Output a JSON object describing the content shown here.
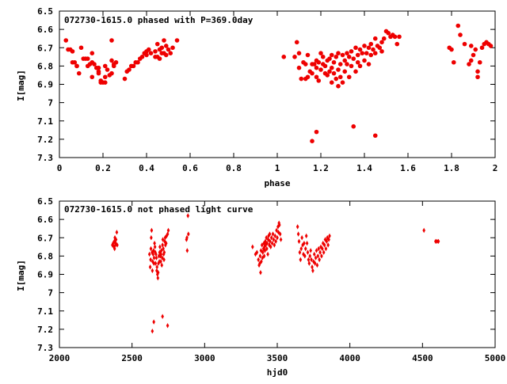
{
  "colors": {
    "points": "#ee0000",
    "frame": "#000000",
    "background": "#ffffff"
  },
  "chart_data": [
    {
      "type": "scatter",
      "title": "072730-1615.0 phased with P=369.0day",
      "xlabel": "phase",
      "ylabel": "I[mag]",
      "xlim": [
        0,
        2
      ],
      "ylim": [
        6.5,
        7.3
      ],
      "y_inverted": true,
      "x_ticks": [
        "0",
        "0.2",
        "0.4",
        "0.6",
        "0.8",
        "1",
        "1.2",
        "1.4",
        "1.6",
        "1.8",
        "2"
      ],
      "y_ticks": [
        "6.5",
        "6.6",
        "6.7",
        "6.8",
        "6.9",
        "7",
        "7.1",
        "7.2",
        "7.3"
      ],
      "marker": "filled-circle",
      "grid": false,
      "legend": "none",
      "points": [
        [
          0.03,
          6.66
        ],
        [
          0.04,
          6.71
        ],
        [
          0.05,
          6.71
        ],
        [
          0.06,
          6.72
        ],
        [
          0.06,
          6.78
        ],
        [
          0.07,
          6.78
        ],
        [
          0.08,
          6.8
        ],
        [
          0.08,
          6.8
        ],
        [
          0.09,
          6.84
        ],
        [
          0.1,
          6.7
        ],
        [
          0.11,
          6.76
        ],
        [
          0.12,
          6.76
        ],
        [
          0.13,
          6.76
        ],
        [
          0.13,
          6.8
        ],
        [
          0.14,
          6.79
        ],
        [
          0.15,
          6.73
        ],
        [
          0.15,
          6.78
        ],
        [
          0.15,
          6.86
        ],
        [
          0.16,
          6.79
        ],
        [
          0.17,
          6.81
        ],
        [
          0.18,
          6.81
        ],
        [
          0.18,
          6.83
        ],
        [
          0.18,
          6.84
        ],
        [
          0.19,
          6.88
        ],
        [
          0.19,
          6.89
        ],
        [
          0.2,
          6.89
        ],
        [
          0.21,
          6.86
        ],
        [
          0.21,
          6.89
        ],
        [
          0.21,
          6.8
        ],
        [
          0.22,
          6.82
        ],
        [
          0.23,
          6.85
        ],
        [
          0.24,
          6.84
        ],
        [
          0.24,
          6.77
        ],
        [
          0.25,
          6.79
        ],
        [
          0.25,
          6.8
        ],
        [
          0.26,
          6.78
        ],
        [
          0.24,
          6.66
        ],
        [
          0.3,
          6.87
        ],
        [
          0.31,
          6.83
        ],
        [
          0.32,
          6.82
        ],
        [
          0.33,
          6.8
        ],
        [
          0.34,
          6.8
        ],
        [
          0.35,
          6.78
        ],
        [
          0.36,
          6.78
        ],
        [
          0.37,
          6.76
        ],
        [
          0.38,
          6.75
        ],
        [
          0.39,
          6.73
        ],
        [
          0.4,
          6.74
        ],
        [
          0.4,
          6.72
        ],
        [
          0.41,
          6.71
        ],
        [
          0.42,
          6.73
        ],
        [
          0.44,
          6.75
        ],
        [
          0.44,
          6.72
        ],
        [
          0.45,
          6.75
        ],
        [
          0.45,
          6.68
        ],
        [
          0.46,
          6.76
        ],
        [
          0.46,
          6.71
        ],
        [
          0.47,
          6.73
        ],
        [
          0.47,
          6.7
        ],
        [
          0.48,
          6.66
        ],
        [
          0.48,
          6.73
        ],
        [
          0.49,
          6.69
        ],
        [
          0.49,
          6.74
        ],
        [
          0.5,
          6.71
        ],
        [
          0.51,
          6.73
        ],
        [
          0.52,
          6.7
        ],
        [
          0.54,
          6.66
        ],
        [
          1.03,
          6.75
        ],
        [
          1.08,
          6.75
        ],
        [
          1.09,
          6.67
        ],
        [
          1.1,
          6.81
        ],
        [
          1.1,
          6.73
        ],
        [
          1.11,
          6.87
        ],
        [
          1.12,
          6.78
        ],
        [
          1.13,
          6.79
        ],
        [
          1.13,
          6.87
        ],
        [
          1.14,
          6.74
        ],
        [
          1.14,
          6.86
        ],
        [
          1.15,
          6.83
        ],
        [
          1.16,
          6.79
        ],
        [
          1.16,
          6.84
        ],
        [
          1.17,
          6.79
        ],
        [
          1.18,
          6.77
        ],
        [
          1.18,
          6.81
        ],
        [
          1.18,
          6.86
        ],
        [
          1.19,
          6.78
        ],
        [
          1.19,
          6.88
        ],
        [
          1.2,
          6.73
        ],
        [
          1.2,
          6.82
        ],
        [
          1.21,
          6.79
        ],
        [
          1.21,
          6.75
        ],
        [
          1.22,
          6.8
        ],
        [
          1.22,
          6.84
        ],
        [
          1.23,
          6.77
        ],
        [
          1.23,
          6.85
        ],
        [
          1.24,
          6.76
        ],
        [
          1.24,
          6.83
        ],
        [
          1.25,
          6.74
        ],
        [
          1.25,
          6.81
        ],
        [
          1.25,
          6.89
        ],
        [
          1.26,
          6.78
        ],
        [
          1.26,
          6.84
        ],
        [
          1.27,
          6.75
        ],
        [
          1.27,
          6.87
        ],
        [
          1.28,
          6.73
        ],
        [
          1.28,
          6.82
        ],
        [
          1.28,
          6.91
        ],
        [
          1.29,
          6.79
        ],
        [
          1.29,
          6.86
        ],
        [
          1.3,
          6.74
        ],
        [
          1.3,
          6.89
        ],
        [
          1.31,
          6.77
        ],
        [
          1.31,
          6.83
        ],
        [
          1.32,
          6.73
        ],
        [
          1.32,
          6.79
        ],
        [
          1.33,
          6.75
        ],
        [
          1.33,
          6.86
        ],
        [
          1.34,
          6.72
        ],
        [
          1.34,
          6.8
        ],
        [
          1.35,
          6.76
        ],
        [
          1.36,
          6.7
        ],
        [
          1.36,
          6.83
        ],
        [
          1.37,
          6.74
        ],
        [
          1.37,
          6.78
        ],
        [
          1.38,
          6.71
        ],
        [
          1.38,
          6.8
        ],
        [
          1.39,
          6.73
        ],
        [
          1.4,
          6.69
        ],
        [
          1.4,
          6.77
        ],
        [
          1.41,
          6.73
        ],
        [
          1.42,
          6.7
        ],
        [
          1.42,
          6.79
        ],
        [
          1.43,
          6.74
        ],
        [
          1.43,
          6.68
        ],
        [
          1.44,
          6.71
        ],
        [
          1.45,
          6.65
        ],
        [
          1.45,
          6.73
        ],
        [
          1.46,
          6.69
        ],
        [
          1.47,
          6.7
        ],
        [
          1.48,
          6.67
        ],
        [
          1.48,
          6.72
        ],
        [
          1.49,
          6.65
        ],
        [
          1.5,
          6.61
        ],
        [
          1.51,
          6.62
        ],
        [
          1.52,
          6.64
        ],
        [
          1.53,
          6.63
        ],
        [
          1.54,
          6.64
        ],
        [
          1.55,
          6.68
        ],
        [
          1.56,
          6.64
        ],
        [
          1.16,
          7.21
        ],
        [
          1.18,
          7.16
        ],
        [
          1.35,
          7.13
        ],
        [
          1.45,
          7.18
        ],
        [
          1.79,
          6.7
        ],
        [
          1.8,
          6.71
        ],
        [
          1.81,
          6.78
        ],
        [
          1.83,
          6.58
        ],
        [
          1.84,
          6.63
        ],
        [
          1.86,
          6.68
        ],
        [
          1.88,
          6.79
        ],
        [
          1.89,
          6.77
        ],
        [
          1.89,
          6.69
        ],
        [
          1.9,
          6.74
        ],
        [
          1.91,
          6.71
        ],
        [
          1.92,
          6.83
        ],
        [
          1.92,
          6.86
        ],
        [
          1.93,
          6.78
        ],
        [
          1.94,
          6.7
        ],
        [
          1.95,
          6.68
        ],
        [
          1.96,
          6.67
        ],
        [
          1.97,
          6.68
        ],
        [
          1.98,
          6.69
        ]
      ]
    },
    {
      "type": "scatter",
      "title": "072730-1615.0 not phased light curve",
      "xlabel": "hjd0",
      "ylabel": "I[mag]",
      "xlim": [
        2000,
        5000
      ],
      "ylim": [
        6.5,
        7.3
      ],
      "y_inverted": true,
      "x_ticks": [
        "2000",
        "2500",
        "3000",
        "3500",
        "4000",
        "4500",
        "5000"
      ],
      "y_ticks": [
        "6.5",
        "6.6",
        "6.7",
        "6.8",
        "6.9",
        "7",
        "7.1",
        "7.2",
        "7.3"
      ],
      "marker": "small-diamond",
      "grid": false,
      "legend": "none",
      "points": [
        [
          2365,
          6.74
        ],
        [
          2370,
          6.73
        ],
        [
          2375,
          6.75
        ],
        [
          2378,
          6.72
        ],
        [
          2380,
          6.76
        ],
        [
          2382,
          6.7
        ],
        [
          2385,
          6.74
        ],
        [
          2388,
          6.73
        ],
        [
          2390,
          6.71
        ],
        [
          2395,
          6.67
        ],
        [
          2398,
          6.74
        ],
        [
          2620,
          6.79
        ],
        [
          2625,
          6.86
        ],
        [
          2628,
          6.82
        ],
        [
          2630,
          6.76
        ],
        [
          2632,
          6.7
        ],
        [
          2635,
          6.66
        ],
        [
          2638,
          6.78
        ],
        [
          2640,
          6.88
        ],
        [
          2642,
          6.83
        ],
        [
          2645,
          6.79
        ],
        [
          2648,
          6.77
        ],
        [
          2650,
          6.84
        ],
        [
          2652,
          6.81
        ],
        [
          2655,
          6.73
        ],
        [
          2658,
          6.75
        ],
        [
          2660,
          6.78
        ],
        [
          2662,
          6.84
        ],
        [
          2665,
          6.79
        ],
        [
          2668,
          6.81
        ],
        [
          2670,
          6.88
        ],
        [
          2672,
          6.86
        ],
        [
          2675,
          6.9
        ],
        [
          2678,
          6.92
        ],
        [
          2680,
          6.89
        ],
        [
          2682,
          6.84
        ],
        [
          2685,
          6.8
        ],
        [
          2688,
          6.83
        ],
        [
          2690,
          6.78
        ],
        [
          2692,
          6.75
        ],
        [
          2695,
          6.8
        ],
        [
          2698,
          6.83
        ],
        [
          2700,
          6.79
        ],
        [
          2702,
          6.77
        ],
        [
          2705,
          6.85
        ],
        [
          2708,
          6.81
        ],
        [
          2710,
          6.74
        ],
        [
          2712,
          6.71
        ],
        [
          2715,
          6.76
        ],
        [
          2718,
          6.79
        ],
        [
          2720,
          6.82
        ],
        [
          2722,
          6.78
        ],
        [
          2725,
          6.72
        ],
        [
          2728,
          6.7
        ],
        [
          2730,
          6.74
        ],
        [
          2735,
          6.73
        ],
        [
          2738,
          6.69
        ],
        [
          2745,
          6.68
        ],
        [
          2750,
          6.66
        ],
        [
          2875,
          6.71
        ],
        [
          2878,
          6.7
        ],
        [
          2880,
          6.77
        ],
        [
          2885,
          6.58
        ],
        [
          2888,
          6.68
        ],
        [
          2640,
          7.21
        ],
        [
          2650,
          7.16
        ],
        [
          2710,
          7.13
        ],
        [
          2745,
          7.18
        ],
        [
          3330,
          6.75
        ],
        [
          3350,
          6.79
        ],
        [
          3360,
          6.78
        ],
        [
          3370,
          6.82
        ],
        [
          3375,
          6.85
        ],
        [
          3380,
          6.84
        ],
        [
          3382,
          6.8
        ],
        [
          3385,
          6.89
        ],
        [
          3388,
          6.77
        ],
        [
          3390,
          6.83
        ],
        [
          3395,
          6.74
        ],
        [
          3398,
          6.81
        ],
        [
          3400,
          6.78
        ],
        [
          3405,
          6.76
        ],
        [
          3408,
          6.73
        ],
        [
          3410,
          6.8
        ],
        [
          3412,
          6.75
        ],
        [
          3415,
          6.77
        ],
        [
          3418,
          6.72
        ],
        [
          3420,
          6.74
        ],
        [
          3425,
          6.7
        ],
        [
          3428,
          6.76
        ],
        [
          3430,
          6.73
        ],
        [
          3435,
          6.79
        ],
        [
          3438,
          6.71
        ],
        [
          3440,
          6.69
        ],
        [
          3445,
          6.74
        ],
        [
          3448,
          6.68
        ],
        [
          3450,
          6.72
        ],
        [
          3455,
          6.75
        ],
        [
          3460,
          6.7
        ],
        [
          3465,
          6.73
        ],
        [
          3470,
          6.68
        ],
        [
          3475,
          6.71
        ],
        [
          3480,
          6.74
        ],
        [
          3485,
          6.69
        ],
        [
          3490,
          6.72
        ],
        [
          3495,
          6.66
        ],
        [
          3500,
          6.7
        ],
        [
          3505,
          6.64
        ],
        [
          3508,
          6.67
        ],
        [
          3512,
          6.62
        ],
        [
          3515,
          6.63
        ],
        [
          3520,
          6.68
        ],
        [
          3525,
          6.71
        ],
        [
          3640,
          6.64
        ],
        [
          3645,
          6.68
        ],
        [
          3650,
          6.72
        ],
        [
          3655,
          6.78
        ],
        [
          3660,
          6.82
        ],
        [
          3665,
          6.76
        ],
        [
          3670,
          6.7
        ],
        [
          3675,
          6.74
        ],
        [
          3680,
          6.79
        ],
        [
          3685,
          6.73
        ],
        [
          3690,
          6.8
        ],
        [
          3695,
          6.76
        ],
        [
          3700,
          6.69
        ],
        [
          3705,
          6.73
        ],
        [
          3710,
          6.78
        ],
        [
          3715,
          6.82
        ],
        [
          3720,
          6.84
        ],
        [
          3725,
          6.8
        ],
        [
          3730,
          6.77
        ],
        [
          3735,
          6.82
        ],
        [
          3740,
          6.86
        ],
        [
          3745,
          6.88
        ],
        [
          3750,
          6.83
        ],
        [
          3755,
          6.79
        ],
        [
          3760,
          6.84
        ],
        [
          3765,
          6.81
        ],
        [
          3770,
          6.77
        ],
        [
          3775,
          6.85
        ],
        [
          3780,
          6.8
        ],
        [
          3785,
          6.76
        ],
        [
          3790,
          6.82
        ],
        [
          3795,
          6.78
        ],
        [
          3800,
          6.75
        ],
        [
          3805,
          6.8
        ],
        [
          3810,
          6.76
        ],
        [
          3815,
          6.73
        ],
        [
          3820,
          6.78
        ],
        [
          3825,
          6.74
        ],
        [
          3830,
          6.71
        ],
        [
          3835,
          6.76
        ],
        [
          3840,
          6.72
        ],
        [
          3845,
          6.7
        ],
        [
          3850,
          6.74
        ],
        [
          3855,
          6.71
        ],
        [
          3860,
          6.69
        ],
        [
          4510,
          6.66
        ],
        [
          4590,
          6.72
        ],
        [
          4600,
          6.72
        ],
        [
          4610,
          6.72
        ]
      ]
    }
  ]
}
